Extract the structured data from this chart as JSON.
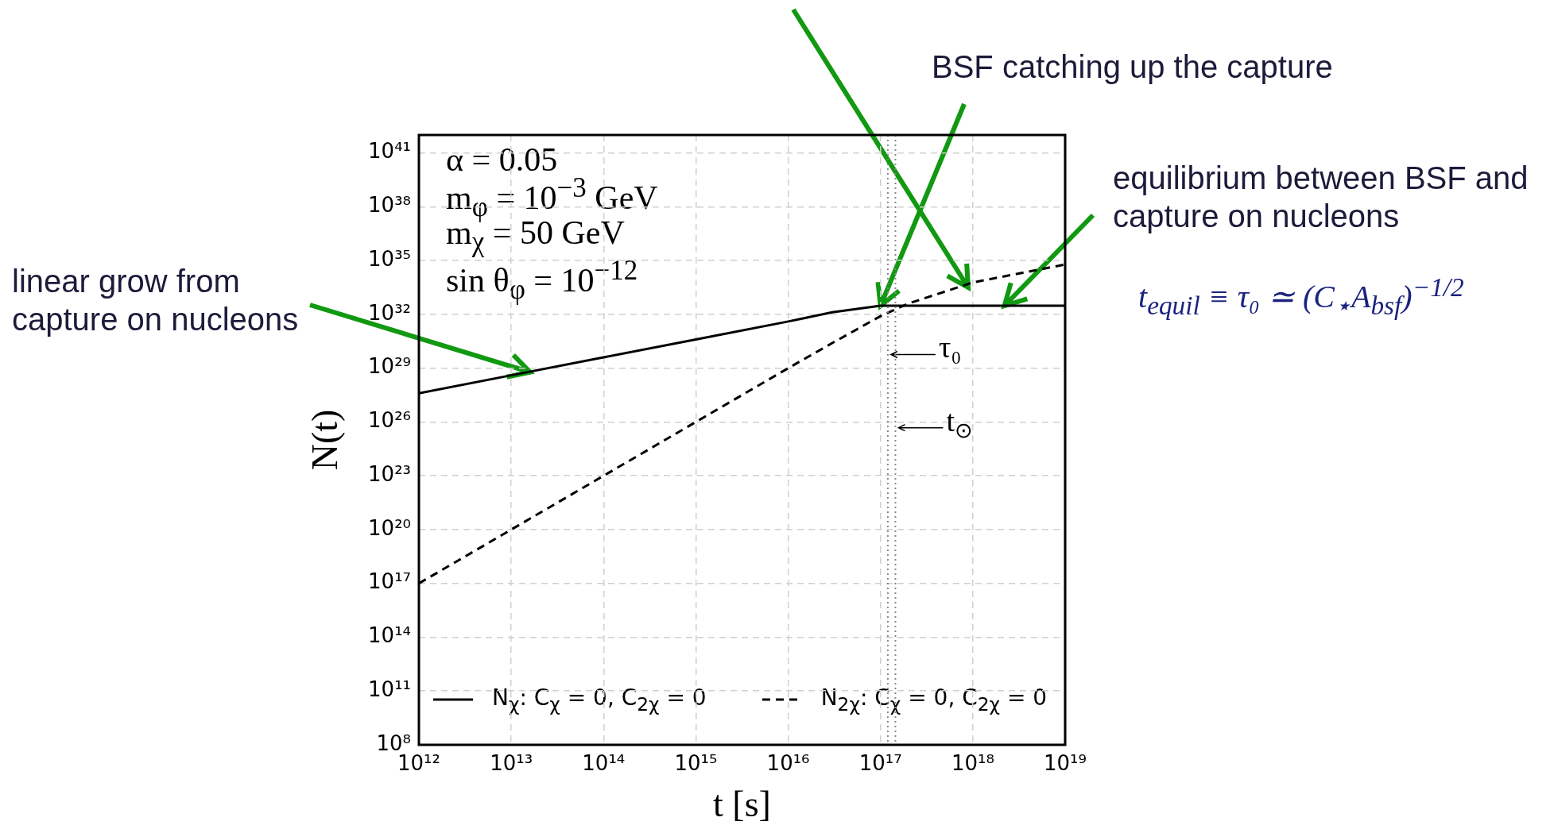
{
  "chart_data": {
    "type": "line",
    "xlabel": "t [s]",
    "ylabel": "N(t)",
    "log": "xy",
    "grid": true,
    "legend": "bottom",
    "marker": "none",
    "xlim": [
      1000000000000.0,
      1e+19
    ],
    "ylim": [
      100000000.0,
      1e+42
    ],
    "xticks": [
      {
        "value": 1000000000000.0,
        "label": "10¹²"
      },
      {
        "value": 10000000000000.0,
        "label": "10¹³"
      },
      {
        "value": 100000000000000.0,
        "label": "10¹⁴"
      },
      {
        "value": 1000000000000000.0,
        "label": "10¹⁵"
      },
      {
        "value": 1e+16,
        "label": "10¹⁶"
      },
      {
        "value": 1e+17,
        "label": "10¹⁷"
      },
      {
        "value": 1e+18,
        "label": "10¹⁸"
      },
      {
        "value": 1e+19,
        "label": "10¹⁹"
      }
    ],
    "yticks": [
      {
        "value": 100000000.0,
        "label": "10⁸"
      },
      {
        "value": 100000000000.0,
        "label": "10¹¹"
      },
      {
        "value": 100000000000000.0,
        "label": "10¹⁴"
      },
      {
        "value": 1e+17,
        "label": "10¹⁷"
      },
      {
        "value": 1e+20,
        "label": "10²⁰"
      },
      {
        "value": 1e+23,
        "label": "10²³"
      },
      {
        "value": 1e+26,
        "label": "10²⁶"
      },
      {
        "value": 1e+29,
        "label": "10²⁹"
      },
      {
        "value": 1e+32,
        "label": "10³²"
      },
      {
        "value": 1e+35,
        "label": "10³⁵"
      },
      {
        "value": 1e+38,
        "label": "10³⁸"
      },
      {
        "value": 1e+41,
        "label": "10⁴¹"
      }
    ],
    "series": [
      {
        "name": "N$_{χ}$: C$_{χ}$ = 0, C$_{2χ}$ = 0",
        "color": "#000000",
        "line_style": "solid",
        "x": [
          1000000000000.0,
          10000000000000.0,
          100000000000000.0,
          1000000000000000.0,
          1e+16,
          3e+16,
          1e+17,
          2e+17,
          1e+18,
          1e+19
        ],
        "values": [
          4e+27,
          4e+28,
          4e+29,
          4e+30,
          4e+31,
          1.3e+32,
          3e+32,
          3e+32,
          3e+32,
          3e+32
        ]
      },
      {
        "name": "N$_{2χ}$: C$_{χ}$ = 0, C$_{2χ}$ = 0",
        "color": "#000000",
        "line_style": "dashed",
        "x": [
          1000000000000.0,
          10000000000000.0,
          100000000000000.0,
          1000000000000000.0,
          1e+16,
          3e+16,
          1e+17,
          2e+17,
          1e+18,
          1e+19
        ],
        "values": [
          1e+17,
          1e+20,
          1e+23,
          1e+26,
          1e+29,
          2.5e+30,
          8e+31,
          4e+32,
          6e+33,
          6e+34
        ]
      }
    ],
    "ref_lines": [
      {
        "axis": "x",
        "value": 1.2e+17,
        "label": "τ₀",
        "color": "#888888",
        "line_style": "dotted"
      },
      {
        "axis": "x",
        "value": 1.45e+17,
        "label": "t$_{⊙}$",
        "color": "#888888",
        "line_style": "dotted"
      }
    ],
    "annotations": [
      {
        "text": "linear grow from\ncapture on nucleons",
        "x": 16000000000000.0,
        "y": 6e+28
      },
      {
        "text": "BSF catching up the capture",
        "x": 1e+17,
        "y": 3e+32
      },
      {
        "text": "equilibrium between BSF and\ncapture on nucleons",
        "x": 2.2e+18,
        "y": 3e+32
      },
      "t$_{equil}$ ≡ τ₀ ≃ (C$_{⋆}$A$_{bsf}$)$^{−1/2}$",
      "α = 0.05",
      "m$_{φ}$ = 10$^{−3}$ GeV",
      "m$_{χ}$ = 50 GeV",
      "sin θ$_{φ}$ = 10$^{−12}$"
    ]
  }
}
